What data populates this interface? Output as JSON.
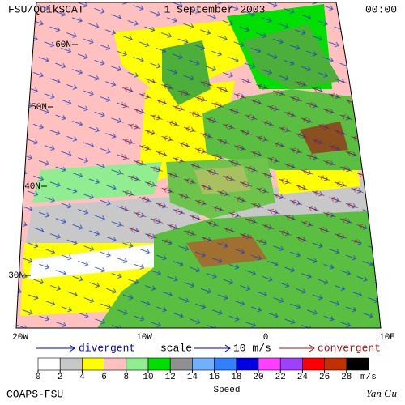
{
  "header": {
    "left": "FSU/QuikSCAT",
    "center": "1 September 2003",
    "right": "00:00"
  },
  "lat_labels": [
    "60N",
    "50N",
    "40N",
    "30N"
  ],
  "lon_labels": [
    "20W",
    "10W",
    "0",
    "10E"
  ],
  "legend": {
    "divergent": "divergent",
    "scale": "scale",
    "scale_value": "10 m/s",
    "convergent": "convergent"
  },
  "colorbar": {
    "ticks": [
      0,
      2,
      4,
      6,
      8,
      10,
      12,
      14,
      16,
      18,
      20,
      22,
      24,
      26,
      28
    ],
    "colors": [
      "#ffffff",
      "#c8c8c8",
      "#ffff00",
      "#ffc0c0",
      "#90ee90",
      "#00e000",
      "#909090",
      "#70b0ff",
      "#3080ff",
      "#0000e0",
      "#ff40ff",
      "#a040ff",
      "#ff0000",
      "#c03000",
      "#000000"
    ],
    "label": "Speed",
    "unit": "m/s"
  },
  "footer": {
    "left": "COAPS-FSU",
    "right": "Yan Gu"
  }
}
